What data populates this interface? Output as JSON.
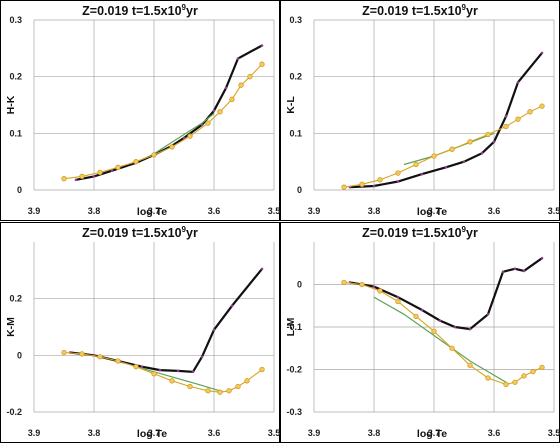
{
  "chart_data": [
    {
      "type": "line",
      "title": "Z=0.019  t=1.5x10",
      "title_sup": "9",
      "title_end": "yr",
      "xlabel": "log Te",
      "ylabel": "H-K",
      "x_reversed": true,
      "xlim": [
        3.5,
        3.9
      ],
      "ylim": [
        0,
        0.3
      ],
      "xticks": [
        "3.9",
        "3.8",
        "3.7",
        "3.6",
        "3.5"
      ],
      "yticks": [
        "0",
        "0.1",
        "0.2",
        "0.3"
      ],
      "series": [
        {
          "style": "black",
          "x": [
            3.83,
            3.8,
            3.77,
            3.73,
            3.7,
            3.67,
            3.65,
            3.62,
            3.6,
            3.58,
            3.56,
            3.52
          ],
          "y": [
            0.018,
            0.024,
            0.034,
            0.048,
            0.062,
            0.078,
            0.092,
            0.115,
            0.14,
            0.18,
            0.232,
            0.255
          ]
        },
        {
          "style": "green",
          "x": [
            3.7,
            3.65,
            3.62,
            3.6
          ],
          "y": [
            0.064,
            0.098,
            0.118,
            0.135
          ]
        },
        {
          "style": "orange",
          "x": [
            3.85,
            3.82,
            3.79,
            3.76,
            3.73,
            3.7,
            3.67,
            3.64,
            3.61,
            3.59,
            3.57,
            3.555,
            3.54,
            3.52
          ],
          "y": [
            0.02,
            0.024,
            0.031,
            0.04,
            0.05,
            0.062,
            0.076,
            0.095,
            0.118,
            0.138,
            0.16,
            0.185,
            0.2,
            0.222
          ]
        }
      ]
    },
    {
      "type": "line",
      "title": "Z=0.019  t=1.5x10",
      "title_sup": "9",
      "title_end": "yr",
      "xlabel": "log Te",
      "ylabel": "K-L",
      "x_reversed": true,
      "xlim": [
        3.5,
        3.9
      ],
      "ylim": [
        0,
        0.3
      ],
      "xticks": [
        "3.9",
        "3.8",
        "3.7",
        "3.6",
        "3.5"
      ],
      "yticks": [
        "0",
        "0.1",
        "0.2",
        "0.3"
      ],
      "series": [
        {
          "style": "black",
          "x": [
            3.84,
            3.8,
            3.76,
            3.72,
            3.68,
            3.65,
            3.62,
            3.6,
            3.58,
            3.56,
            3.52
          ],
          "y": [
            0.005,
            0.007,
            0.015,
            0.028,
            0.04,
            0.05,
            0.065,
            0.085,
            0.13,
            0.19,
            0.242
          ]
        },
        {
          "style": "green",
          "x": [
            3.75,
            3.7,
            3.65,
            3.6
          ],
          "y": [
            0.045,
            0.06,
            0.08,
            0.1
          ]
        },
        {
          "style": "orange",
          "x": [
            3.85,
            3.82,
            3.79,
            3.76,
            3.73,
            3.7,
            3.67,
            3.64,
            3.61,
            3.58,
            3.56,
            3.54,
            3.52
          ],
          "y": [
            0.005,
            0.01,
            0.018,
            0.03,
            0.045,
            0.06,
            0.072,
            0.085,
            0.098,
            0.112,
            0.125,
            0.138,
            0.148
          ]
        }
      ]
    },
    {
      "type": "line",
      "title": "Z=0.019  t=1.5x10",
      "title_sup": "9",
      "title_end": "yr",
      "xlabel": "log Te",
      "ylabel": "K-M",
      "x_reversed": true,
      "xlim": [
        3.5,
        3.9
      ],
      "ylim": [
        -0.2,
        0.4
      ],
      "xticks": [
        "3.9",
        "3.8",
        "3.7",
        "3.6",
        "3.5"
      ],
      "yticks": [
        "-0.2",
        "0",
        "0.2"
      ],
      "series": [
        {
          "style": "black",
          "x": [
            3.84,
            3.8,
            3.76,
            3.72,
            3.69,
            3.66,
            3.635,
            3.62,
            3.6,
            3.57,
            3.52
          ],
          "y": [
            0.01,
            0.0,
            -0.02,
            -0.04,
            -0.052,
            -0.055,
            -0.058,
            -0.005,
            0.09,
            0.175,
            0.305
          ]
        },
        {
          "style": "green",
          "x": [
            3.73,
            3.68,
            3.63,
            3.59
          ],
          "y": [
            -0.04,
            -0.07,
            -0.1,
            -0.125
          ]
        },
        {
          "style": "orange",
          "x": [
            3.85,
            3.82,
            3.79,
            3.76,
            3.73,
            3.7,
            3.67,
            3.64,
            3.61,
            3.59,
            3.575,
            3.56,
            3.545,
            3.52
          ],
          "y": [
            0.01,
            0.005,
            -0.005,
            -0.02,
            -0.04,
            -0.065,
            -0.09,
            -0.11,
            -0.125,
            -0.13,
            -0.125,
            -0.11,
            -0.09,
            -0.05
          ]
        }
      ]
    },
    {
      "type": "line",
      "title": "Z=0.019  t=1.5x10",
      "title_sup": "9",
      "title_end": "yr",
      "xlabel": "log Te",
      "ylabel": "L-M",
      "x_reversed": true,
      "xlim": [
        3.5,
        3.9
      ],
      "ylim": [
        -0.3,
        0.1
      ],
      "xticks": [
        "3.9",
        "3.8",
        "3.7",
        "3.6",
        "3.5"
      ],
      "yticks": [
        "-0.3",
        "-0.2",
        "-0.1",
        "0"
      ],
      "series": [
        {
          "style": "black",
          "x": [
            3.84,
            3.8,
            3.76,
            3.72,
            3.69,
            3.665,
            3.64,
            3.61,
            3.585,
            3.565,
            3.55,
            3.52
          ],
          "y": [
            0.005,
            -0.005,
            -0.03,
            -0.06,
            -0.085,
            -0.1,
            -0.105,
            -0.07,
            0.03,
            0.037,
            0.032,
            0.062
          ]
        },
        {
          "style": "green",
          "x": [
            3.8,
            3.75,
            3.7,
            3.64,
            3.58
          ],
          "y": [
            -0.03,
            -0.07,
            -0.12,
            -0.18,
            -0.23
          ]
        },
        {
          "style": "orange",
          "x": [
            3.85,
            3.82,
            3.79,
            3.76,
            3.73,
            3.7,
            3.67,
            3.64,
            3.61,
            3.58,
            3.565,
            3.55,
            3.535,
            3.52
          ],
          "y": [
            0.005,
            0.0,
            -0.015,
            -0.04,
            -0.075,
            -0.11,
            -0.15,
            -0.19,
            -0.22,
            -0.235,
            -0.23,
            -0.215,
            -0.205,
            -0.195
          ]
        }
      ]
    }
  ]
}
